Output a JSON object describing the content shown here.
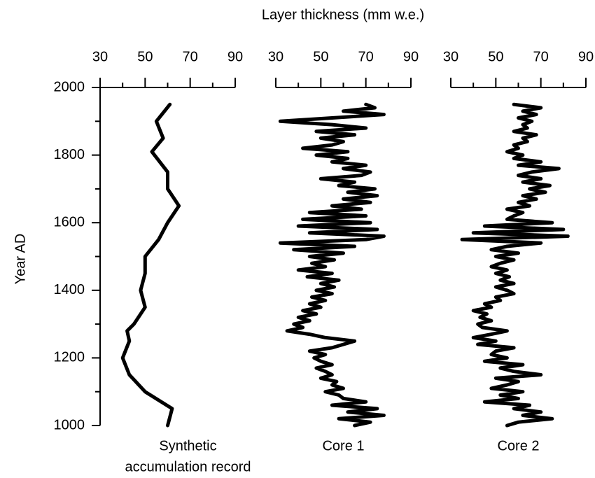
{
  "chart_data": {
    "type": "line",
    "title": "Layer thickness  (mm w.e.)",
    "y_label": "Year  AD",
    "color": "#000000",
    "ylim": [
      1000,
      2000
    ],
    "yticks": [
      1000,
      1200,
      1400,
      1600,
      1800,
      2000
    ],
    "yminorticks": [
      1100,
      1300,
      1500,
      1700,
      1900
    ],
    "panels": [
      {
        "label_lines": [
          "Synthetic",
          "accumulation record"
        ],
        "xlim": [
          30,
          90
        ],
        "xticks": [
          30,
          50,
          70,
          90
        ],
        "xminorticks": [
          40,
          60,
          80
        ],
        "x": [
          1000,
          1050,
          1100,
          1150,
          1200,
          1250,
          1280,
          1300,
          1350,
          1400,
          1450,
          1500,
          1550,
          1600,
          1650,
          1700,
          1750,
          1810,
          1850,
          1900,
          1950
        ],
        "values": [
          60,
          62,
          50,
          43,
          40,
          43,
          42,
          45,
          50,
          48,
          50,
          50,
          56,
          60,
          65,
          60,
          60,
          53,
          58,
          55,
          61
        ]
      },
      {
        "label_lines": [
          "Core 1"
        ],
        "xlim": [
          30,
          90
        ],
        "xticks": [
          30,
          50,
          70,
          90
        ],
        "xminorticks": [
          40,
          60,
          80
        ],
        "x": [
          1000,
          1010,
          1020,
          1030,
          1040,
          1050,
          1060,
          1070,
          1080,
          1090,
          1100,
          1110,
          1120,
          1130,
          1140,
          1150,
          1160,
          1170,
          1180,
          1190,
          1200,
          1210,
          1220,
          1230,
          1240,
          1250,
          1260,
          1270,
          1280,
          1290,
          1300,
          1310,
          1320,
          1330,
          1340,
          1350,
          1360,
          1370,
          1380,
          1390,
          1400,
          1410,
          1420,
          1430,
          1440,
          1450,
          1460,
          1470,
          1480,
          1490,
          1500,
          1510,
          1520,
          1530,
          1540,
          1550,
          1560,
          1570,
          1580,
          1590,
          1600,
          1610,
          1620,
          1630,
          1640,
          1650,
          1660,
          1670,
          1680,
          1690,
          1700,
          1710,
          1720,
          1730,
          1740,
          1750,
          1760,
          1770,
          1780,
          1790,
          1800,
          1810,
          1820,
          1830,
          1840,
          1850,
          1860,
          1870,
          1880,
          1890,
          1900,
          1910,
          1920,
          1930,
          1940,
          1950
        ],
        "values": [
          65,
          72,
          58,
          78,
          62,
          75,
          55,
          70,
          60,
          58,
          52,
          60,
          55,
          57,
          50,
          55,
          52,
          48,
          55,
          50,
          47,
          52,
          45,
          55,
          60,
          65,
          52,
          45,
          35,
          42,
          38,
          45,
          40,
          48,
          42,
          50,
          45,
          52,
          46,
          55,
          48,
          56,
          50,
          58,
          44,
          55,
          40,
          52,
          46,
          56,
          45,
          60,
          38,
          65,
          32,
          70,
          78,
          45,
          75,
          40,
          72,
          42,
          70,
          45,
          68,
          55,
          72,
          60,
          75,
          62,
          74,
          58,
          65,
          50,
          68,
          72,
          60,
          70,
          55,
          62,
          48,
          62,
          42,
          55,
          60,
          50,
          65,
          48,
          70,
          55,
          32,
          55,
          78,
          60,
          74,
          70
        ]
      },
      {
        "label_lines": [
          "Core 2"
        ],
        "xlim": [
          30,
          90
        ],
        "xticks": [
          30,
          50,
          70,
          90
        ],
        "xminorticks": [
          40,
          60,
          80
        ],
        "x": [
          1000,
          1010,
          1020,
          1030,
          1040,
          1050,
          1060,
          1070,
          1080,
          1090,
          1100,
          1110,
          1120,
          1130,
          1140,
          1150,
          1160,
          1170,
          1180,
          1190,
          1200,
          1210,
          1220,
          1230,
          1240,
          1250,
          1260,
          1270,
          1280,
          1290,
          1300,
          1310,
          1320,
          1330,
          1340,
          1350,
          1360,
          1370,
          1380,
          1390,
          1400,
          1410,
          1420,
          1430,
          1440,
          1450,
          1460,
          1470,
          1480,
          1490,
          1500,
          1510,
          1520,
          1530,
          1540,
          1550,
          1560,
          1570,
          1580,
          1590,
          1600,
          1610,
          1620,
          1630,
          1640,
          1650,
          1660,
          1670,
          1680,
          1690,
          1700,
          1710,
          1720,
          1730,
          1740,
          1750,
          1760,
          1770,
          1780,
          1790,
          1800,
          1810,
          1820,
          1830,
          1840,
          1850,
          1860,
          1870,
          1880,
          1890,
          1900,
          1910,
          1920,
          1930,
          1940,
          1950
        ],
        "values": [
          55,
          60,
          75,
          62,
          70,
          58,
          65,
          45,
          60,
          52,
          62,
          48,
          55,
          60,
          50,
          70,
          58,
          52,
          62,
          45,
          55,
          48,
          50,
          58,
          42,
          50,
          40,
          48,
          55,
          44,
          42,
          48,
          43,
          46,
          40,
          48,
          45,
          52,
          50,
          58,
          55,
          50,
          58,
          52,
          56,
          50,
          55,
          48,
          52,
          58,
          50,
          60,
          48,
          55,
          70,
          35,
          82,
          40,
          80,
          45,
          75,
          55,
          58,
          62,
          55,
          65,
          60,
          68,
          62,
          72,
          65,
          74,
          62,
          70,
          60,
          66,
          78,
          60,
          70,
          58,
          62,
          55,
          60,
          58,
          64,
          62,
          68,
          58,
          64,
          62,
          66,
          60,
          68,
          62,
          70,
          58
        ]
      }
    ]
  }
}
